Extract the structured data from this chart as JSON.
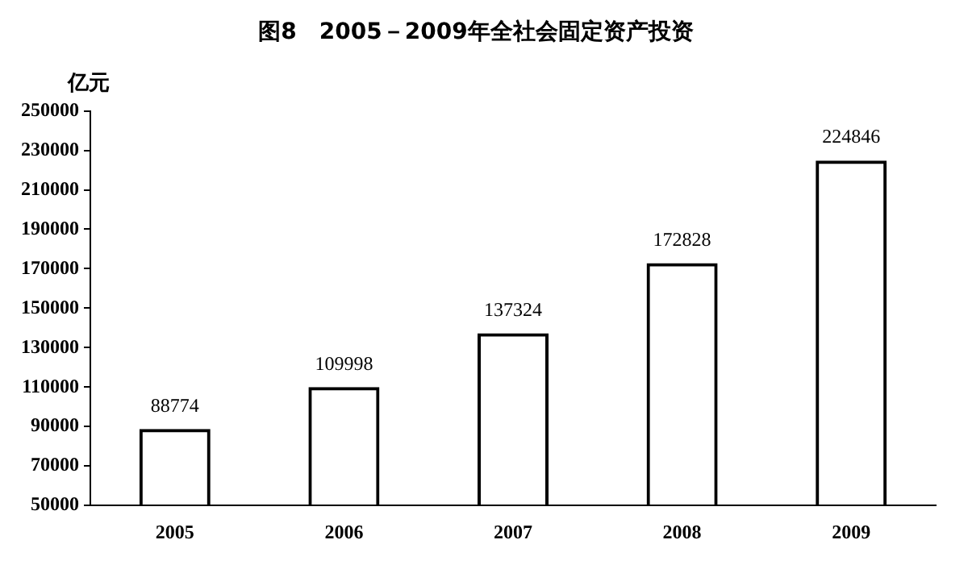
{
  "chart_data": {
    "type": "bar",
    "title": "图8　2005－2009年全社会固定资产投资",
    "ylabel": "亿元",
    "categories": [
      "2005",
      "2006",
      "2007",
      "2008",
      "2009"
    ],
    "values": [
      88774,
      109998,
      137324,
      172828,
      224846
    ],
    "color": "#000000",
    "ylim": [
      50000,
      250000
    ],
    "yticks": [
      50000,
      70000,
      90000,
      110000,
      130000,
      150000,
      170000,
      190000,
      210000,
      230000,
      250000
    ],
    "data_labels": true,
    "grid": false,
    "legend": false
  }
}
